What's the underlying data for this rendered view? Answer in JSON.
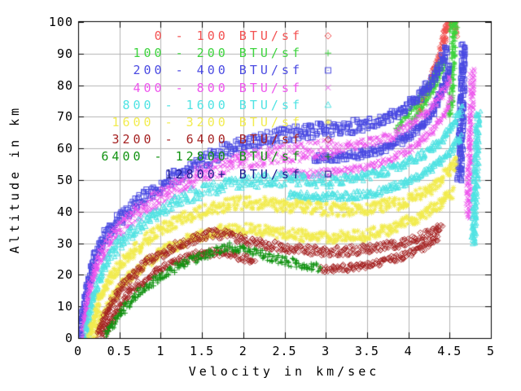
{
  "chart_data": {
    "type": "scatter",
    "title": "",
    "xlabel": "Velocity in km/sec",
    "ylabel": "Altitude in km",
    "xlim": [
      0,
      5
    ],
    "ylim": [
      0,
      100
    ],
    "grid": true,
    "grid_color": "#b3b3b3",
    "axis_color": "#000000",
    "background": "#ffffff",
    "legend_position": "top-left-inside",
    "xticks": {
      "values": [
        0,
        0.5,
        1,
        1.5,
        2,
        2.5,
        3,
        3.5,
        4,
        4.5,
        5
      ],
      "labels": [
        "0",
        "0.5",
        "1",
        "1.5",
        "2",
        "2.5",
        "3",
        "3.5",
        "4",
        "4.5",
        "5"
      ]
    },
    "yticks": {
      "values": [
        0,
        10,
        20,
        30,
        40,
        50,
        60,
        70,
        80,
        90,
        100
      ],
      "labels": [
        "0",
        "10",
        "20",
        "30",
        "40",
        "50",
        "60",
        "70",
        "80",
        "90",
        "100"
      ]
    },
    "series": [
      {
        "name": "0 - 100 BTU/sf",
        "color": "#f35151",
        "marker": "diamond",
        "strands": [
          {
            "pts": [
              [
                4.13,
                72
              ],
              [
                4.25,
                79
              ],
              [
                4.35,
                87
              ],
              [
                4.44,
                95
              ],
              [
                4.5,
                101
              ]
            ],
            "hw": 1.6
          },
          {
            "pts": [
              [
                4.42,
                96
              ],
              [
                4.47,
                99
              ],
              [
                4.52,
                101
              ],
              [
                4.56,
                99
              ]
            ],
            "hw": 2.2
          },
          {
            "pts": [
              [
                4.55,
                101
              ],
              [
                4.58,
                96
              ]
            ],
            "hw": 1.2
          }
        ]
      },
      {
        "name": "100 - 200 BTU/sf",
        "color": "#3ed43e",
        "marker": "plus",
        "strands": [
          {
            "pts": [
              [
                3.85,
                66
              ],
              [
                4.0,
                71
              ],
              [
                4.15,
                76
              ],
              [
                4.3,
                82
              ],
              [
                4.4,
                87.5
              ]
            ],
            "hw": 1.2
          },
          {
            "pts": [
              [
                4.05,
                69
              ],
              [
                4.2,
                74.5
              ],
              [
                4.33,
                80.5
              ],
              [
                4.45,
                88
              ]
            ],
            "hw": 1.2
          },
          {
            "pts": [
              [
                4.51,
                70
              ],
              [
                4.53,
                82
              ],
              [
                4.55,
                94
              ],
              [
                4.56,
                100
              ]
            ],
            "hw": 1.0,
            "hwv": 0.025
          },
          {
            "pts": [
              [
                4.5,
                98
              ],
              [
                4.55,
                101
              ],
              [
                4.6,
                99
              ]
            ],
            "hw": 1.5
          }
        ]
      },
      {
        "name": "200 - 400 BTU/sf",
        "color": "#4a4ae2",
        "marker": "square",
        "strands": [
          {
            "pts": [
              [
                0.03,
                1
              ],
              [
                0.09,
                13
              ],
              [
                0.18,
                24
              ],
              [
                0.3,
                31
              ],
              [
                0.5,
                37.5
              ],
              [
                0.75,
                43.5
              ],
              [
                1.05,
                49
              ],
              [
                1.4,
                54.5
              ],
              [
                1.75,
                59
              ],
              [
                2.1,
                62
              ],
              [
                2.5,
                64.3
              ],
              [
                2.9,
                65.8
              ],
              [
                3.25,
                66.7
              ],
              [
                3.45,
                67.2
              ]
            ],
            "hw": 2.3
          },
          {
            "pts": [
              [
                3.45,
                67.2
              ],
              [
                3.7,
                69
              ],
              [
                3.95,
                72.5
              ],
              [
                4.15,
                77
              ],
              [
                4.3,
                82
              ],
              [
                4.4,
                87
              ],
              [
                4.47,
                92
              ]
            ],
            "hw": 1.7
          },
          {
            "pts": [
              [
                4.62,
                50
              ],
              [
                4.64,
                65
              ],
              [
                4.66,
                80
              ],
              [
                4.67,
                93
              ]
            ],
            "hw": 0.8,
            "hwv": 0.03
          },
          {
            "pts": [
              [
                2.85,
                57
              ],
              [
                3.15,
                57.3
              ],
              [
                3.45,
                58.3
              ],
              [
                3.7,
                60
              ],
              [
                3.95,
                63
              ],
              [
                4.15,
                67
              ],
              [
                4.3,
                72
              ],
              [
                4.42,
                79
              ],
              [
                4.5,
                86
              ]
            ],
            "hw": 1.3
          }
        ]
      },
      {
        "name": "400 - 800 BTU/sf",
        "color": "#ee55ee",
        "marker": "cross",
        "strands": [
          {
            "pts": [
              [
                0.06,
                1
              ],
              [
                0.13,
                14
              ],
              [
                0.25,
                25
              ],
              [
                0.42,
                32
              ],
              [
                0.65,
                38
              ],
              [
                0.95,
                44
              ],
              [
                1.3,
                49.5
              ],
              [
                1.65,
                53.5
              ],
              [
                2.0,
                56
              ],
              [
                2.4,
                58
              ],
              [
                2.8,
                59.2
              ],
              [
                3.15,
                60
              ]
            ],
            "hw": 3.0
          },
          {
            "pts": [
              [
                3.15,
                60
              ],
              [
                3.5,
                61.5
              ],
              [
                3.8,
                64
              ],
              [
                4.05,
                67.5
              ],
              [
                4.25,
                72
              ],
              [
                4.4,
                77
              ],
              [
                4.52,
                83
              ]
            ],
            "hw": 1.6
          },
          {
            "pts": [
              [
                4.72,
                38
              ],
              [
                4.74,
                55
              ],
              [
                4.76,
                72
              ],
              [
                4.78,
                85
              ]
            ],
            "hw": 0.8,
            "hwv": 0.03
          },
          {
            "pts": [
              [
                2.45,
                52.5
              ],
              [
                2.8,
                52
              ],
              [
                3.15,
                52.5
              ],
              [
                3.5,
                54
              ],
              [
                3.8,
                56.5
              ],
              [
                4.05,
                60
              ],
              [
                4.25,
                64.5
              ],
              [
                4.42,
                70
              ],
              [
                4.53,
                76
              ]
            ],
            "hw": 1.2
          }
        ]
      },
      {
        "name": "800 - 1600 BTU/sf",
        "color": "#4fe3e3",
        "marker": "triangle",
        "strands": [
          {
            "pts": [
              [
                0.1,
                1
              ],
              [
                0.18,
                13
              ],
              [
                0.32,
                23
              ],
              [
                0.5,
                30
              ],
              [
                0.75,
                36
              ],
              [
                1.05,
                41.5
              ],
              [
                1.4,
                45.5
              ],
              [
                1.75,
                48.3
              ],
              [
                2.1,
                49.8
              ],
              [
                2.45,
                50.2
              ],
              [
                2.8,
                50
              ],
              [
                3.1,
                49.8
              ]
            ],
            "hw": 2.2
          },
          {
            "pts": [
              [
                3.1,
                49.8
              ],
              [
                3.45,
                51
              ],
              [
                3.75,
                53
              ],
              [
                4.0,
                55.5
              ],
              [
                4.2,
                58.5
              ],
              [
                4.4,
                63
              ],
              [
                4.55,
                68
              ],
              [
                4.65,
                73
              ]
            ],
            "hw": 1.5
          },
          {
            "pts": [
              [
                4.79,
                30
              ],
              [
                4.81,
                45
              ],
              [
                4.83,
                60
              ],
              [
                4.85,
                72
              ]
            ],
            "hw": 0.8,
            "hwv": 0.028
          },
          {
            "pts": [
              [
                2.55,
                45.5
              ],
              [
                2.9,
                44.6
              ],
              [
                3.25,
                44.8
              ],
              [
                3.6,
                46
              ],
              [
                3.9,
                48.5
              ],
              [
                4.15,
                51.5
              ],
              [
                4.35,
                55
              ],
              [
                4.52,
                59.5
              ],
              [
                4.65,
                64
              ]
            ],
            "hw": 1.2
          }
        ]
      },
      {
        "name": "1600 - 3200 BTU/sf",
        "color": "#f2ec4f",
        "marker": "star",
        "strands": [
          {
            "pts": [
              [
                0.14,
                1
              ],
              [
                0.26,
                12
              ],
              [
                0.44,
                21
              ],
              [
                0.68,
                28
              ],
              [
                0.95,
                33.5
              ],
              [
                1.25,
                37.5
              ],
              [
                1.55,
                40.5
              ],
              [
                1.85,
                42.5
              ],
              [
                2.15,
                42.8
              ],
              [
                2.5,
                42
              ],
              [
                2.85,
                41
              ],
              [
                3.2,
                40.5
              ],
              [
                3.55,
                41
              ],
              [
                3.85,
                42.5
              ],
              [
                4.1,
                45
              ],
              [
                4.3,
                48
              ],
              [
                4.47,
                52
              ],
              [
                4.6,
                56
              ]
            ],
            "hw": 2.0
          },
          {
            "pts": [
              [
                0.2,
                1
              ],
              [
                0.33,
                9
              ],
              [
                0.52,
                16.5
              ],
              [
                0.78,
                23
              ],
              [
                1.08,
                28
              ],
              [
                1.4,
                31.8
              ],
              [
                1.72,
                34
              ],
              [
                2.05,
                34.5
              ],
              [
                2.4,
                33.5
              ],
              [
                2.75,
                32.3
              ],
              [
                3.1,
                31.8
              ],
              [
                3.45,
                32.5
              ],
              [
                3.75,
                34.2
              ],
              [
                4.0,
                36.8
              ],
              [
                4.2,
                39.5
              ],
              [
                4.4,
                43
              ],
              [
                4.55,
                46.5
              ]
            ],
            "hw": 1.8
          }
        ]
      },
      {
        "name": "3200 - 6400 BTU/sf",
        "color": "#a52222",
        "marker": "diamond",
        "strands": [
          {
            "pts": [
              [
                0.24,
                1
              ],
              [
                0.38,
                10
              ],
              [
                0.58,
                18
              ],
              [
                0.85,
                24.5
              ],
              [
                1.15,
                28.8
              ],
              [
                1.45,
                31.8
              ],
              [
                1.68,
                33.2
              ],
              [
                1.95,
                31.5
              ],
              [
                2.2,
                29.8
              ],
              [
                2.5,
                28.5
              ],
              [
                2.85,
                27.6
              ],
              [
                3.2,
                27.5
              ],
              [
                3.55,
                28.3
              ],
              [
                3.85,
                29.8
              ],
              [
                4.1,
                31.5
              ],
              [
                4.3,
                33.5
              ],
              [
                4.42,
                35
              ]
            ],
            "hw": 1.5
          },
          {
            "pts": [
              [
                0.3,
                1
              ],
              [
                0.45,
                8
              ],
              [
                0.65,
                15
              ],
              [
                0.92,
                20.5
              ],
              [
                1.2,
                24.3
              ],
              [
                1.48,
                26.6
              ],
              [
                1.7,
                27.3
              ],
              [
                1.95,
                25.8
              ],
              [
                2.15,
                24.2
              ]
            ],
            "hw": 1.3
          },
          {
            "pts": [
              [
                2.95,
                21.8
              ],
              [
                3.3,
                22.2
              ],
              [
                3.65,
                23.8
              ],
              [
                3.95,
                26
              ],
              [
                4.2,
                29
              ],
              [
                4.38,
                32
              ]
            ],
            "hw": 1.1
          }
        ]
      },
      {
        "name": "6400 - 12800 BTU/sf",
        "color": "#129312",
        "marker": "plus",
        "strands": [
          {
            "pts": [
              [
                0.34,
                1
              ],
              [
                0.5,
                7.5
              ],
              [
                0.72,
                14
              ],
              [
                1.0,
                19.5
              ],
              [
                1.3,
                23.8
              ],
              [
                1.6,
                26.8
              ],
              [
                1.85,
                28.8
              ],
              [
                2.05,
                27.8
              ],
              [
                2.3,
                25.8
              ],
              [
                2.6,
                23.8
              ],
              [
                2.95,
                22.3
              ]
            ],
            "hw": 1.4
          }
        ]
      },
      {
        "name": "12800+ BTU/sf",
        "color": "#1d1d8f",
        "marker": "square",
        "strands": []
      }
    ]
  }
}
